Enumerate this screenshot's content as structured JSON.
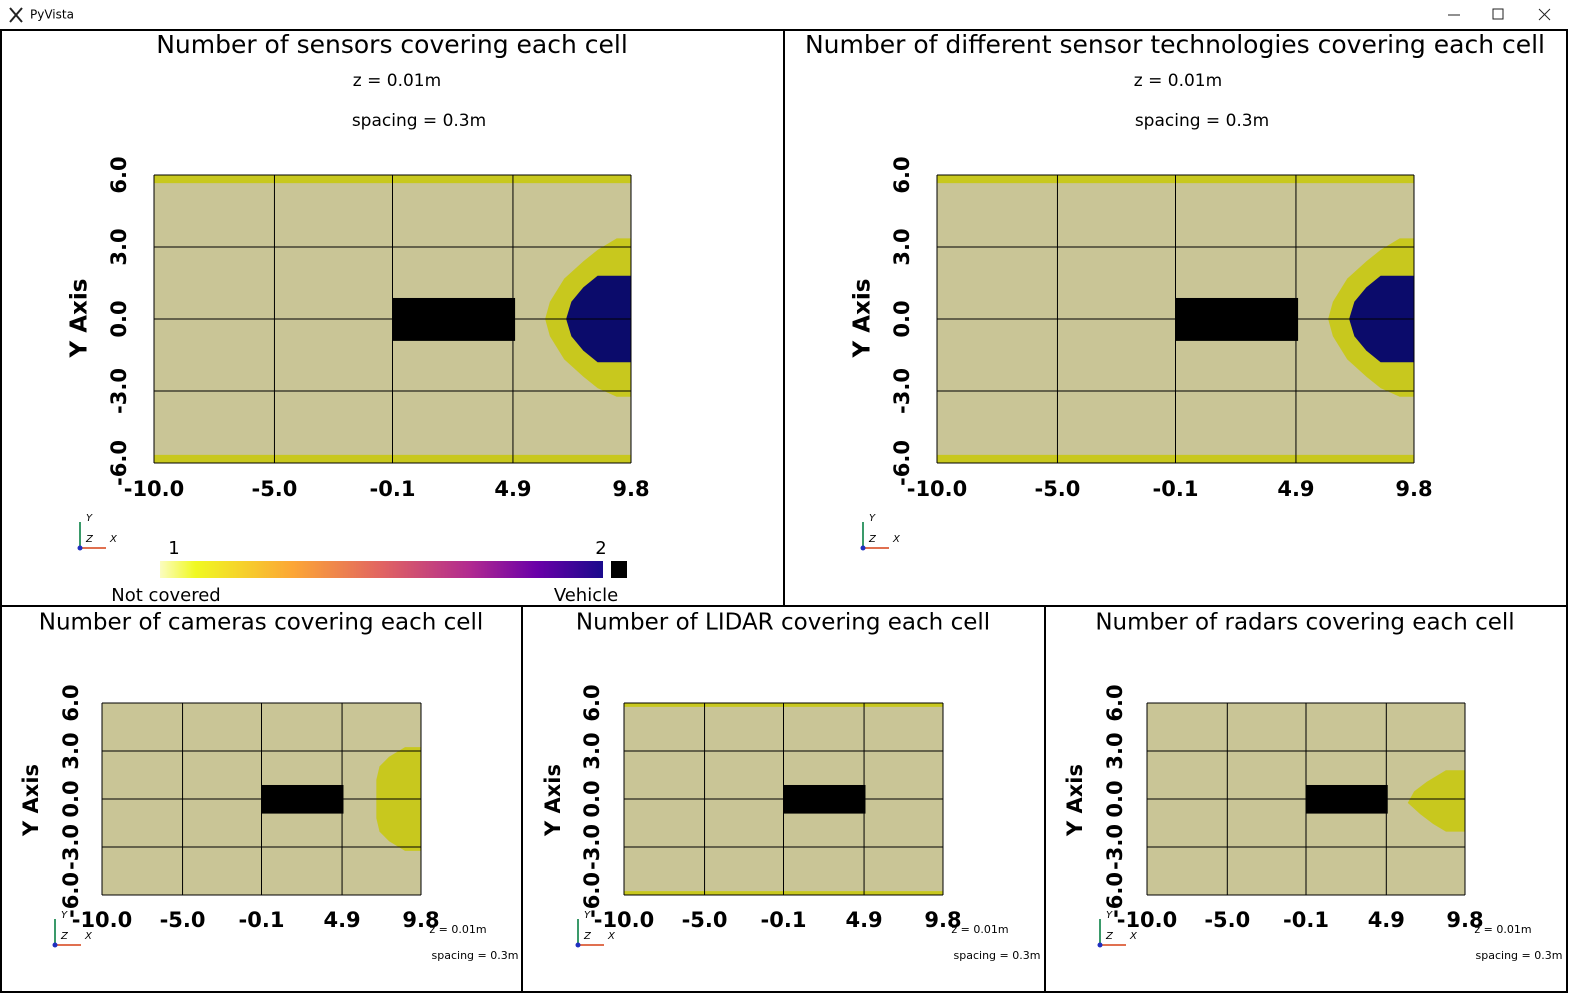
{
  "window": {
    "title": "PyVista"
  },
  "chart_data": [
    {
      "type": "heatmap",
      "title": "Number of sensors covering each cell",
      "annotations": [
        "z = 0.01m",
        "spacing = 0.3m"
      ],
      "ylabel": "Y Axis",
      "xlim": [
        -10,
        9.8
      ],
      "ylim": [
        -6,
        6
      ],
      "xticks": [
        {
          "value": -10,
          "label": "-10.0"
        },
        {
          "value": -5,
          "label": "-5.0"
        },
        -0.1,
        4.9,
        9.8
      ],
      "yticks": [
        {
          "value": -6,
          "label": "-6.0"
        },
        {
          "value": -3,
          "label": "-3.0"
        },
        {
          "value": 0,
          "label": "0.0"
        },
        {
          "value": 3,
          "label": "3.0"
        },
        {
          "value": 6,
          "label": "6.0"
        }
      ],
      "grid": true,
      "orientation_axes": [
        "Y",
        "Z",
        "X"
      ],
      "colors": {
        "background": "#c9c596",
        "covered": "#c8c81e",
        "double": "#0b0b6b",
        "vehicle": "#000000"
      },
      "colorbar": {
        "clim": [
          1,
          2
        ],
        "ticks": [
          1,
          2
        ],
        "labels": [
          "Not covered",
          "Vehicle"
        ]
      }
    },
    {
      "type": "heatmap",
      "title": "Number of different sensor technologies covering each cell",
      "annotations": [
        "z = 0.01m",
        "spacing = 0.3m"
      ],
      "ylabel": "Y Axis",
      "xlim": [
        -10,
        9.8
      ],
      "ylim": [
        -6,
        6
      ],
      "xticks": [
        {
          "value": -10,
          "label": "-10.0"
        },
        {
          "value": -5,
          "label": "-5.0"
        },
        -0.1,
        4.9,
        9.8
      ],
      "yticks": [
        {
          "value": -6,
          "label": "-6.0"
        },
        {
          "value": -3,
          "label": "-3.0"
        },
        {
          "value": 0,
          "label": "0.0"
        },
        {
          "value": 3,
          "label": "3.0"
        },
        {
          "value": 6,
          "label": "6.0"
        }
      ],
      "grid": true,
      "orientation_axes": [
        "Y",
        "Z",
        "X"
      ],
      "colors": {
        "background": "#c9c596",
        "covered": "#c8c81e",
        "double": "#0b0b6b",
        "vehicle": "#000000"
      }
    },
    {
      "type": "heatmap",
      "title": "Number of cameras covering each cell",
      "annotations": [
        "z = 0.01m",
        "spacing = 0.3m"
      ],
      "ylabel": "Y Axis",
      "xlim": [
        -10,
        9.8
      ],
      "ylim": [
        -6,
        6
      ],
      "xticks": [
        {
          "value": -10,
          "label": "-10.0"
        },
        {
          "value": -5,
          "label": "-5.0"
        },
        -0.1,
        4.9,
        9.8
      ],
      "yticks": [
        {
          "value": -6,
          "label": "-6.0"
        },
        {
          "value": -3,
          "label": "-3.0"
        },
        {
          "value": 0,
          "label": "0.0"
        },
        {
          "value": 3,
          "label": "3.0"
        },
        {
          "value": 6,
          "label": "6.0"
        }
      ],
      "grid": true,
      "orientation_axes": [
        "Y",
        "Z",
        "X"
      ],
      "colors": {
        "background": "#c9c596",
        "covered": "#c8c81e",
        "vehicle": "#000000"
      }
    },
    {
      "type": "heatmap",
      "title": "Number of LIDAR covering each cell",
      "annotations": [
        "z = 0.01m",
        "spacing = 0.3m"
      ],
      "ylabel": "Y Axis",
      "xlim": [
        -10,
        9.8
      ],
      "ylim": [
        -6,
        6
      ],
      "xticks": [
        {
          "value": -10,
          "label": "-10.0"
        },
        {
          "value": -5,
          "label": "-5.0"
        },
        -0.1,
        4.9,
        9.8
      ],
      "yticks": [
        {
          "value": -6,
          "label": "-6.0"
        },
        {
          "value": -3,
          "label": "-3.0"
        },
        {
          "value": 0,
          "label": "0.0"
        },
        {
          "value": 3,
          "label": "3.0"
        },
        {
          "value": 6,
          "label": "6.0"
        }
      ],
      "grid": true,
      "orientation_axes": [
        "Y",
        "Z",
        "X"
      ],
      "colors": {
        "background": "#c9c596",
        "covered": "#c8c81e",
        "vehicle": "#000000"
      }
    },
    {
      "type": "heatmap",
      "title": "Number of radars covering each cell",
      "annotations": [
        "z = 0.01m",
        "spacing = 0.3m"
      ],
      "ylabel": "Y Axis",
      "xlim": [
        -10,
        9.8
      ],
      "ylim": [
        -6,
        6
      ],
      "xticks": [
        {
          "value": -10,
          "label": "-10.0"
        },
        {
          "value": -5,
          "label": "-5.0"
        },
        -0.1,
        4.9,
        9.8
      ],
      "yticks": [
        {
          "value": -6,
          "label": "-6.0"
        },
        {
          "value": -3,
          "label": "-3.0"
        },
        {
          "value": 0,
          "label": "0.0"
        },
        {
          "value": 3,
          "label": "3.0"
        },
        {
          "value": 6,
          "label": "6.0"
        }
      ],
      "grid": true,
      "orientation_axes": [
        "Y",
        "Z",
        "X"
      ],
      "colors": {
        "background": "#c9c596",
        "covered": "#c8c81e",
        "vehicle": "#000000"
      }
    }
  ]
}
